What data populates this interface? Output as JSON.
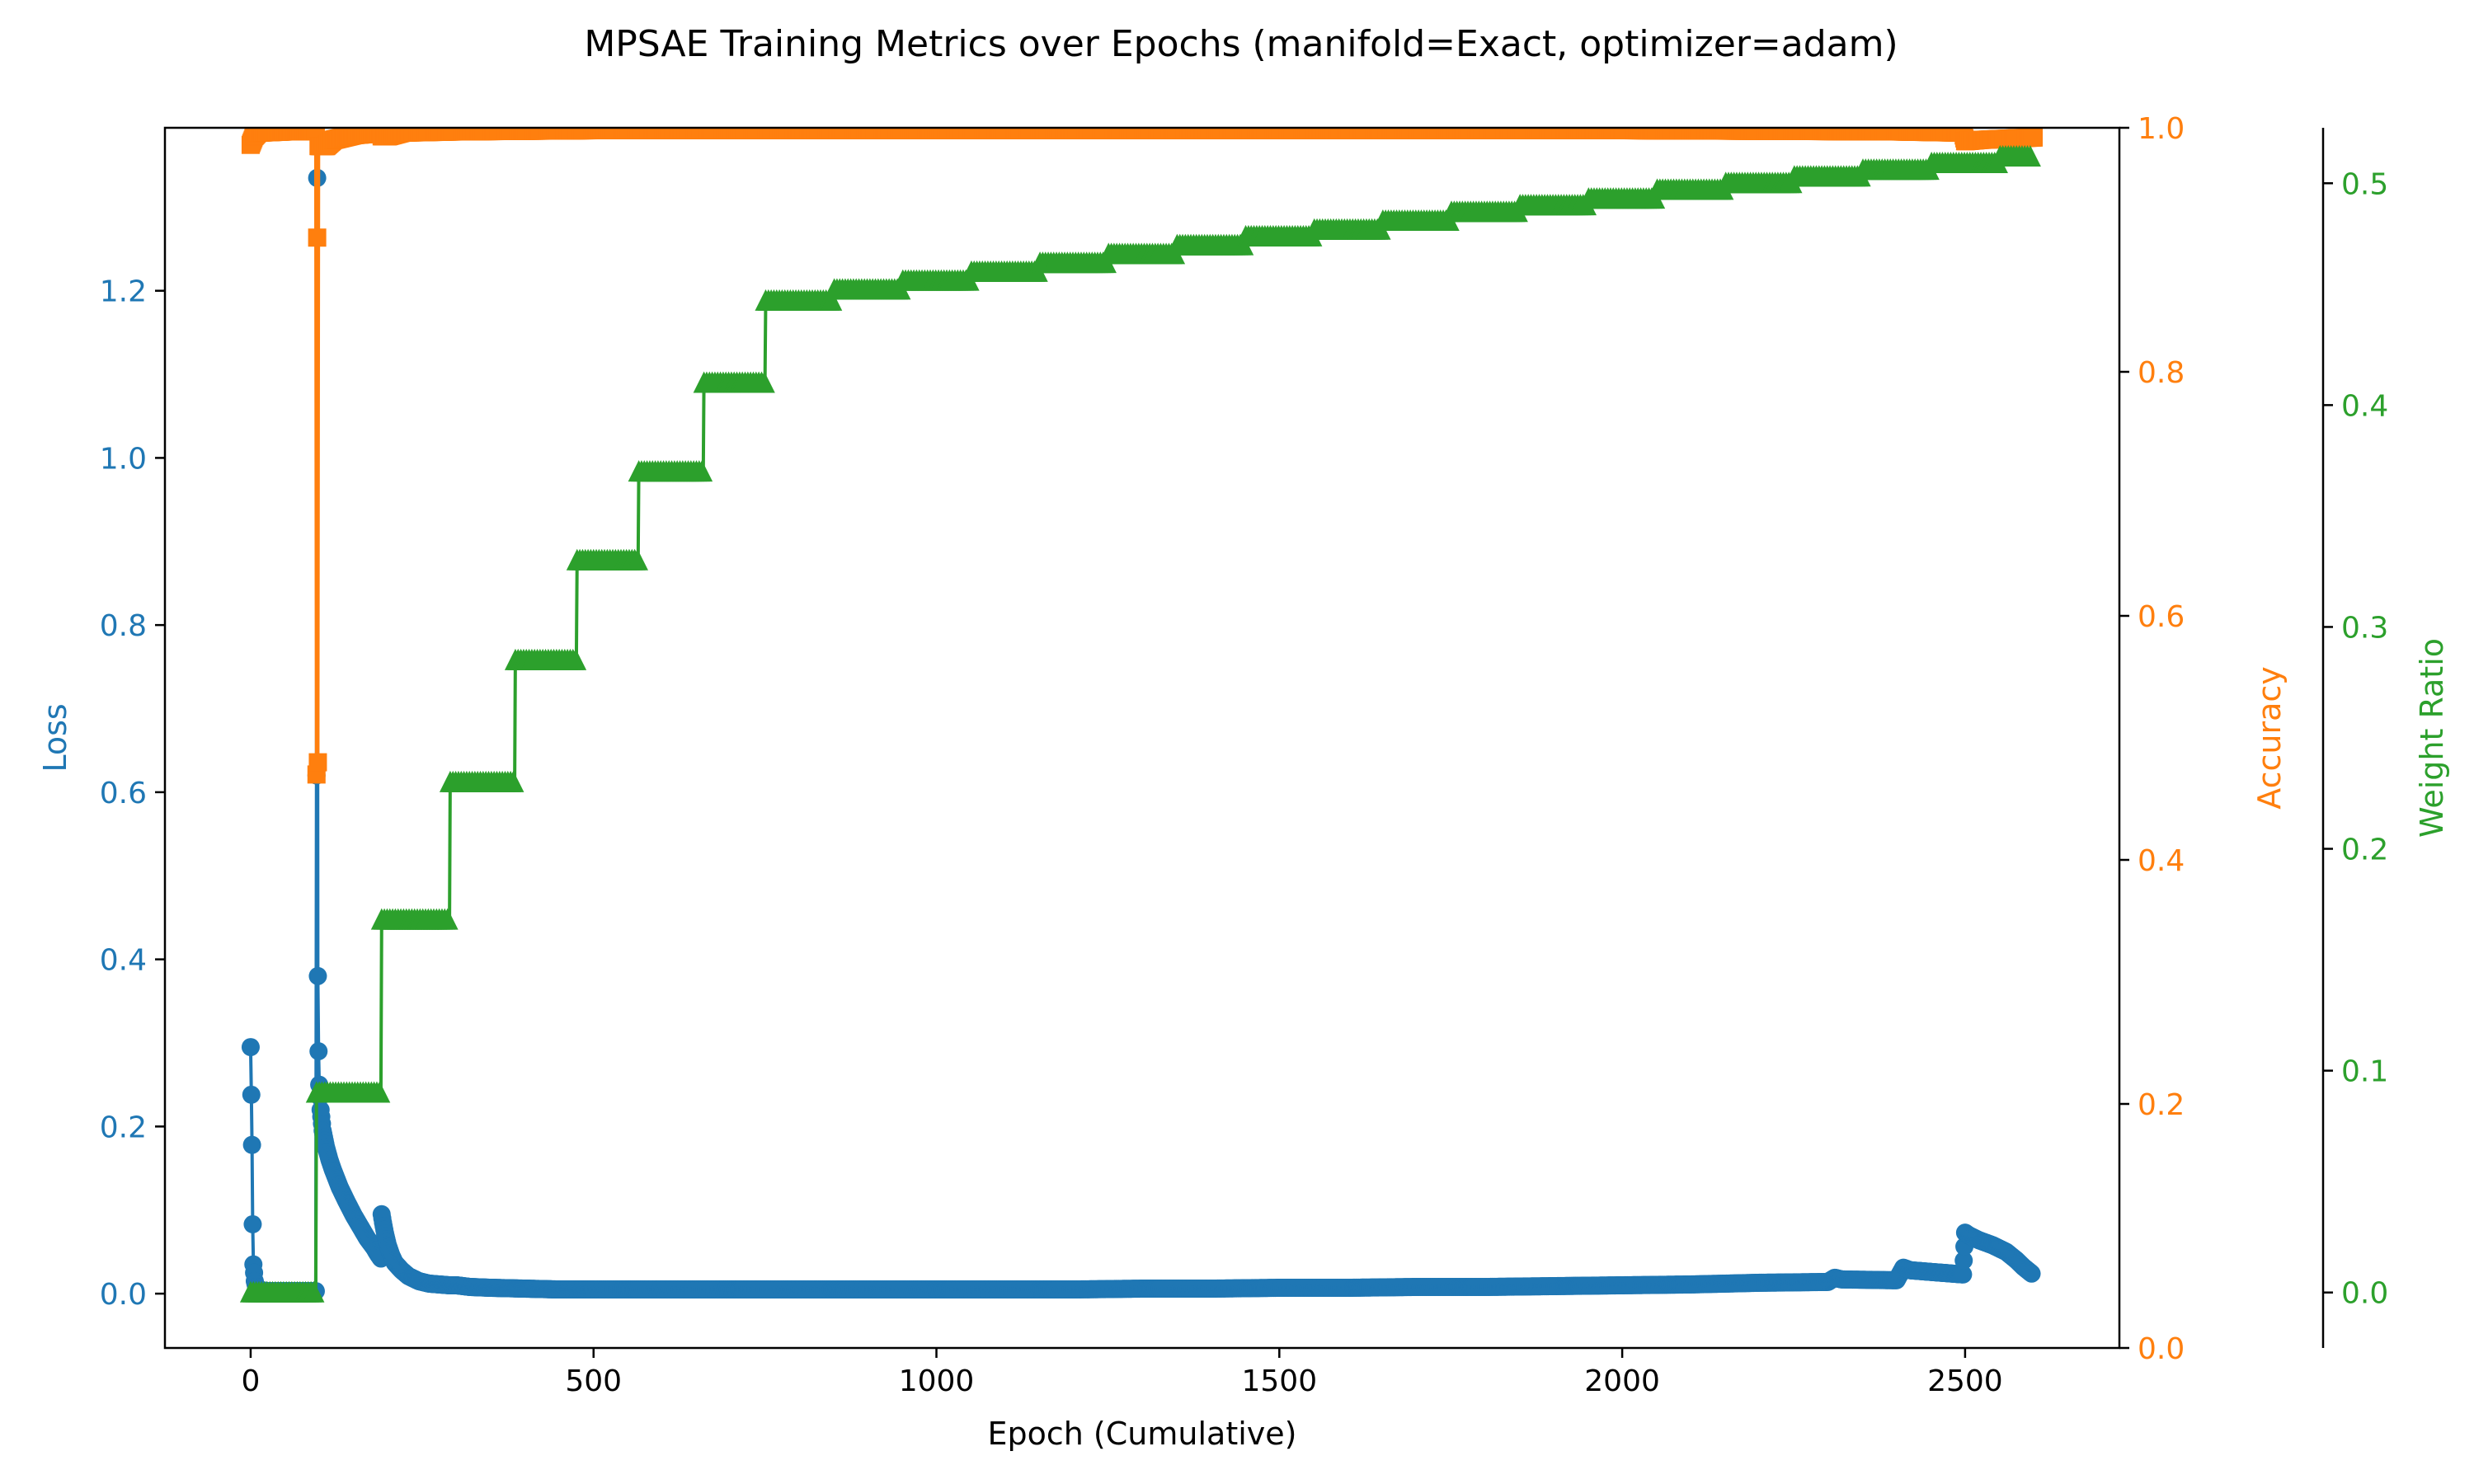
{
  "chart_data": {
    "type": "line",
    "title": "MPSAE Training Metrics over Epochs (manifold=Exact, optimizer=adam)",
    "xlabel": "Epoch (Cumulative)",
    "xlim": [
      -125,
      2725
    ],
    "xticks": [
      0,
      500,
      1000,
      1500,
      2000,
      2500
    ],
    "axes": {
      "loss": {
        "label": "Loss",
        "ylim": [
          -0.065,
          1.395
        ],
        "ticks": [
          0.0,
          0.2,
          0.4,
          0.6,
          0.8,
          1.0,
          1.2
        ],
        "tick_labels": [
          "0.0",
          "0.2",
          "0.4",
          "0.6",
          "0.8",
          "1.0",
          "1.2"
        ],
        "color": "#1f77b4"
      },
      "accuracy": {
        "label": "Accuracy",
        "ylim": [
          0.0,
          1.0
        ],
        "ticks": [
          0.0,
          0.2,
          0.4,
          0.6,
          0.8,
          1.0
        ],
        "tick_labels": [
          "0.0",
          "0.2",
          "0.4",
          "0.6",
          "0.8",
          "1.0"
        ],
        "color": "#ff7f0e"
      },
      "weight_ratio": {
        "label": "Weight Ratio",
        "ylim": [
          -0.025,
          0.525
        ],
        "ticks": [
          0.0,
          0.1,
          0.2,
          0.3,
          0.4,
          0.5
        ],
        "tick_labels": [
          "0.0",
          "0.1",
          "0.2",
          "0.3",
          "0.4",
          "0.5"
        ],
        "color": "#2ca02c"
      }
    },
    "series": [
      {
        "name": "Loss",
        "axis": "loss",
        "marker": "circle",
        "color": "#1f77b4",
        "points": [
          [
            0,
            0.295
          ],
          [
            1,
            0.238
          ],
          [
            2,
            0.178
          ],
          [
            3,
            0.083
          ],
          [
            4,
            0.035
          ],
          [
            5,
            0.025
          ],
          [
            6,
            0.015
          ],
          [
            8,
            0.008
          ],
          [
            10,
            0.005
          ],
          [
            15,
            0.004
          ],
          [
            25,
            0.003
          ],
          [
            40,
            0.003
          ],
          [
            55,
            0.003
          ],
          [
            70,
            0.003
          ],
          [
            85,
            0.003
          ],
          [
            95,
            0.003
          ],
          [
            96,
            0.62
          ],
          [
            97,
            1.335
          ],
          [
            98,
            0.38
          ],
          [
            99,
            0.29
          ],
          [
            100,
            0.25
          ],
          [
            102,
            0.22
          ],
          [
            105,
            0.195
          ],
          [
            110,
            0.175
          ],
          [
            115,
            0.16
          ],
          [
            120,
            0.148
          ],
          [
            130,
            0.127
          ],
          [
            140,
            0.11
          ],
          [
            150,
            0.094
          ],
          [
            160,
            0.08
          ],
          [
            170,
            0.066
          ],
          [
            180,
            0.055
          ],
          [
            185,
            0.048
          ],
          [
            190,
            0.042
          ],
          [
            191,
            0.095
          ],
          [
            193,
            0.085
          ],
          [
            196,
            0.072
          ],
          [
            200,
            0.058
          ],
          [
            205,
            0.046
          ],
          [
            210,
            0.037
          ],
          [
            220,
            0.028
          ],
          [
            230,
            0.021
          ],
          [
            245,
            0.015
          ],
          [
            260,
            0.012
          ],
          [
            275,
            0.011
          ],
          [
            290,
            0.01
          ],
          [
            300,
            0.01
          ],
          [
            320,
            0.008
          ],
          [
            350,
            0.007
          ],
          [
            400,
            0.006
          ],
          [
            450,
            0.005
          ],
          [
            500,
            0.005
          ],
          [
            600,
            0.005
          ],
          [
            700,
            0.005
          ],
          [
            800,
            0.005
          ],
          [
            900,
            0.005
          ],
          [
            1000,
            0.005
          ],
          [
            1100,
            0.005
          ],
          [
            1200,
            0.005
          ],
          [
            1300,
            0.006
          ],
          [
            1400,
            0.006
          ],
          [
            1500,
            0.007
          ],
          [
            1600,
            0.007
          ],
          [
            1700,
            0.008
          ],
          [
            1800,
            0.008
          ],
          [
            1900,
            0.009
          ],
          [
            2000,
            0.01
          ],
          [
            2100,
            0.011
          ],
          [
            2200,
            0.013
          ],
          [
            2300,
            0.014
          ],
          [
            2310,
            0.019
          ],
          [
            2320,
            0.017
          ],
          [
            2400,
            0.016
          ],
          [
            2410,
            0.031
          ],
          [
            2420,
            0.028
          ],
          [
            2450,
            0.026
          ],
          [
            2497,
            0.023
          ],
          [
            2500,
            0.073
          ],
          [
            2505,
            0.07
          ],
          [
            2520,
            0.064
          ],
          [
            2540,
            0.058
          ],
          [
            2560,
            0.05
          ],
          [
            2575,
            0.04
          ],
          [
            2585,
            0.032
          ],
          [
            2597,
            0.024
          ]
        ]
      },
      {
        "name": "Accuracy",
        "axis": "accuracy",
        "marker": "square",
        "color": "#ff7f0e",
        "points": [
          [
            0,
            0.986
          ],
          [
            5,
            0.993
          ],
          [
            10,
            0.996
          ],
          [
            50,
            0.997
          ],
          [
            95,
            0.997
          ],
          [
            96,
            0.47
          ],
          [
            97,
            0.91
          ],
          [
            98,
            0.48
          ],
          [
            99,
            0.985
          ],
          [
            100,
            0.985
          ],
          [
            110,
            0.985
          ],
          [
            120,
            0.99
          ],
          [
            150,
            0.994
          ],
          [
            190,
            0.996
          ],
          [
            191,
            0.993
          ],
          [
            200,
            0.993
          ],
          [
            220,
            0.996
          ],
          [
            300,
            0.997
          ],
          [
            500,
            0.998
          ],
          [
            1000,
            0.998
          ],
          [
            1500,
            0.998
          ],
          [
            2000,
            0.998
          ],
          [
            2400,
            0.997
          ],
          [
            2497,
            0.996
          ],
          [
            2500,
            0.989
          ],
          [
            2520,
            0.99
          ],
          [
            2600,
            0.992
          ]
        ]
      },
      {
        "name": "Weight Ratio",
        "axis": "weight_ratio",
        "marker": "triangle",
        "color": "#2ca02c",
        "steps": [
          [
            0,
            95,
            0.0
          ],
          [
            96,
            190,
            0.09
          ],
          [
            191,
            290,
            0.168
          ],
          [
            291,
            385,
            0.23
          ],
          [
            386,
            475,
            0.285
          ],
          [
            476,
            565,
            0.33
          ],
          [
            566,
            660,
            0.37
          ],
          [
            661,
            750,
            0.41
          ],
          [
            751,
            850,
            0.447
          ],
          [
            851,
            950,
            0.452
          ],
          [
            951,
            1050,
            0.456
          ],
          [
            1051,
            1150,
            0.46
          ],
          [
            1151,
            1250,
            0.464
          ],
          [
            1251,
            1350,
            0.468
          ],
          [
            1351,
            1450,
            0.472
          ],
          [
            1451,
            1550,
            0.476
          ],
          [
            1551,
            1650,
            0.479
          ],
          [
            1651,
            1750,
            0.483
          ],
          [
            1751,
            1850,
            0.487
          ],
          [
            1851,
            1950,
            0.49
          ],
          [
            1951,
            2050,
            0.493
          ],
          [
            2051,
            2150,
            0.497
          ],
          [
            2151,
            2250,
            0.5
          ],
          [
            2251,
            2350,
            0.503
          ],
          [
            2351,
            2450,
            0.506
          ],
          [
            2451,
            2550,
            0.509
          ],
          [
            2551,
            2597,
            0.512
          ]
        ]
      }
    ]
  }
}
